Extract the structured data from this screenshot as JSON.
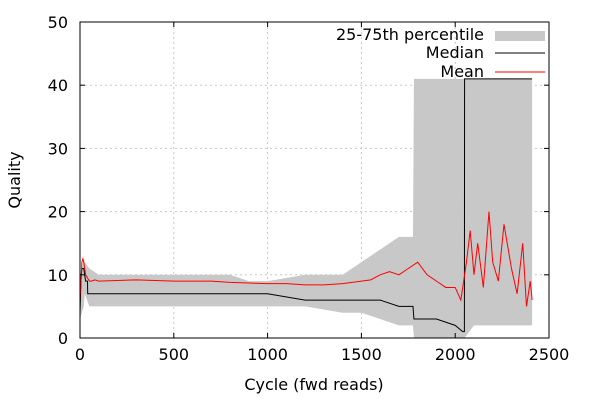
{
  "chart_data": {
    "type": "line",
    "xlabel": "Cycle (fwd reads)",
    "ylabel": "Quality",
    "xlim": [
      0,
      2500
    ],
    "ylim": [
      0,
      50
    ],
    "x_ticks": [
      0,
      500,
      1000,
      1500,
      2000,
      2500
    ],
    "y_ticks": [
      0,
      10,
      20,
      30,
      40,
      50
    ],
    "x_tick_labels": [
      "0",
      "500",
      "1000",
      "1500",
      "2000",
      "2500"
    ],
    "y_tick_labels": [
      "0",
      "10",
      "20",
      "30",
      "40",
      "50"
    ],
    "grid": true,
    "legend_position": "top-right",
    "legend": [
      {
        "label": "25-75th percentile",
        "kind": "band"
      },
      {
        "label": "Median",
        "kind": "line"
      },
      {
        "label": "Mean",
        "kind": "line"
      }
    ],
    "colors": {
      "percentile_band": "#c8c8c8",
      "median": "#000000",
      "mean": "#ff0000",
      "grid": "#c8c8c8"
    },
    "series": [
      {
        "name": "25-75th percentile",
        "kind": "band",
        "x": [
          0,
          20,
          25,
          50,
          100,
          300,
          500,
          700,
          710,
          800,
          900,
          1000,
          1200,
          1400,
          1500,
          1600,
          1700,
          1775,
          1780,
          1900,
          2000,
          2050,
          2100,
          2200,
          2300,
          2400,
          2410
        ],
        "lower": [
          3,
          5,
          7,
          5,
          5,
          5,
          5,
          5,
          5,
          5,
          5,
          5,
          5,
          4,
          4,
          3,
          2,
          2,
          0,
          0,
          0,
          0,
          2,
          2,
          2,
          2,
          2
        ],
        "upper": [
          8,
          13,
          12,
          11,
          10,
          10,
          10,
          10,
          10,
          10,
          9,
          9,
          10,
          10,
          12,
          14,
          16,
          16,
          41,
          41,
          41,
          41,
          41,
          41,
          41,
          41,
          41
        ]
      },
      {
        "name": "Median",
        "kind": "line",
        "x": [
          0,
          5,
          10,
          15,
          20,
          25,
          30,
          40,
          41,
          70,
          100,
          300,
          500,
          700,
          710,
          800,
          1000,
          1200,
          1400,
          1500,
          1600,
          1700,
          1775,
          1780,
          1900,
          2000,
          2040,
          2049,
          2050,
          2100,
          2200,
          2300,
          2400,
          2410
        ],
        "y": [
          4,
          9,
          11,
          11,
          11,
          10,
          9,
          9,
          7,
          7,
          7,
          7,
          7,
          7,
          7,
          7,
          7,
          6,
          6,
          6,
          6,
          5,
          5,
          3,
          3,
          2,
          1,
          1,
          41,
          41,
          41,
          41,
          41,
          41
        ]
      },
      {
        "name": "Mean",
        "kind": "line",
        "x": [
          0,
          5,
          10,
          15,
          20,
          25,
          30,
          40,
          50,
          60,
          80,
          100,
          200,
          300,
          400,
          500,
          600,
          700,
          800,
          900,
          1000,
          1100,
          1200,
          1300,
          1400,
          1450,
          1500,
          1550,
          1600,
          1650,
          1700,
          1750,
          1800,
          1850,
          1900,
          1950,
          2000,
          2030,
          2060,
          2080,
          2100,
          2120,
          2150,
          2180,
          2200,
          2230,
          2260,
          2300,
          2330,
          2360,
          2380,
          2400,
          2410
        ],
        "y": [
          6,
          9,
          12,
          12.5,
          12,
          11,
          10,
          9.5,
          9,
          9,
          9.2,
          9,
          9.1,
          9.2,
          9.1,
          9,
          9,
          9,
          8.8,
          8.7,
          8.6,
          8.6,
          8.4,
          8.4,
          8.6,
          8.8,
          9,
          9.2,
          10,
          10.5,
          10,
          11,
          12,
          10,
          9,
          8,
          8,
          6,
          12,
          17,
          10,
          15,
          8,
          20,
          12,
          9,
          18,
          11,
          7,
          15,
          5,
          9,
          6
        ]
      }
    ]
  }
}
